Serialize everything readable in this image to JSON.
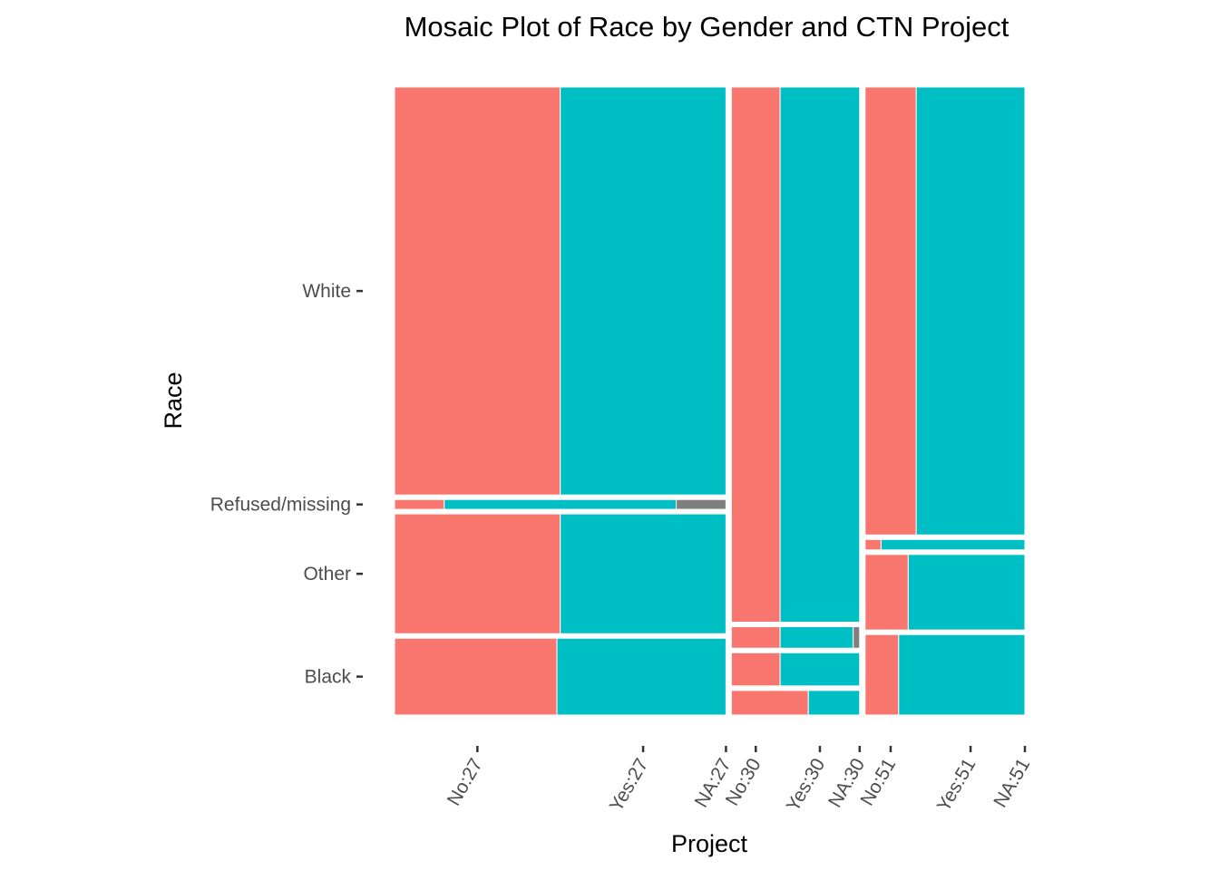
{
  "chart_data": {
    "type": "mosaic",
    "title": "Mosaic Plot of Race by Gender and CTN Project",
    "xlabel": "Project",
    "ylabel": "Race",
    "grid": false,
    "legend": "none",
    "colors": {
      "Male": "#F8766D",
      "Female": "#00BFC4",
      "NA": "#7F7F7F"
    },
    "y_tick_labels": [
      "White",
      "Refused/missing",
      "Other",
      "Black"
    ],
    "x_tick_labels": [
      "No:27",
      "Yes:27",
      "NA:27",
      "No:30",
      "Yes:30",
      "NA:30",
      "No:51",
      "Yes:51",
      "NA:51"
    ],
    "projects": [
      {
        "name": "27",
        "width_share": 0.535,
        "races": [
          {
            "race": "Black",
            "share": 0.125,
            "male": 0.49,
            "female": 0.51,
            "na": 0.0
          },
          {
            "race": "Other",
            "share": 0.195,
            "male": 0.5,
            "female": 0.5,
            "na": 0.0
          },
          {
            "race": "Refused/missing",
            "share": 0.016,
            "male": 0.15,
            "female": 0.7,
            "na": 0.15
          },
          {
            "race": "White",
            "share": 0.664,
            "male": 0.5,
            "female": 0.5,
            "na": 0.0
          }
        ]
      },
      {
        "name": "30",
        "width_share": 0.207,
        "races": [
          {
            "race": "Black",
            "share": 0.04,
            "male": 0.6,
            "female": 0.4,
            "na": 0.0
          },
          {
            "race": "Other",
            "share": 0.054,
            "male": 0.38,
            "female": 0.62,
            "na": 0.0
          },
          {
            "race": "Refused/missing",
            "share": 0.035,
            "male": 0.38,
            "female": 0.57,
            "na": 0.05
          },
          {
            "race": "White",
            "share": 0.871,
            "male": 0.38,
            "female": 0.62,
            "na": 0.0
          }
        ]
      },
      {
        "name": "51",
        "width_share": 0.258,
        "races": [
          {
            "race": "Black",
            "share": 0.131,
            "male": 0.21,
            "female": 0.79,
            "na": 0.0
          },
          {
            "race": "Other",
            "share": 0.123,
            "male": 0.27,
            "female": 0.73,
            "na": 0.0
          },
          {
            "race": "Refused/missing",
            "share": 0.017,
            "male": 0.1,
            "female": 0.9,
            "na": 0.0
          },
          {
            "race": "White",
            "share": 0.729,
            "male": 0.32,
            "female": 0.68,
            "na": 0.0
          }
        ]
      }
    ]
  }
}
